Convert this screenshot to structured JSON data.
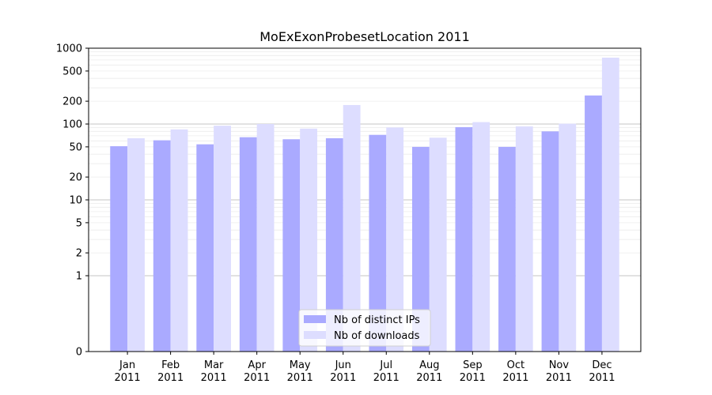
{
  "chart_data": {
    "type": "bar",
    "title": "MoExExonProbesetLocation 2011",
    "xlabel": "",
    "ylabel": "",
    "yscale": "symlog",
    "ylim": [
      0,
      1000
    ],
    "y_ticks": [
      0,
      1,
      2,
      5,
      10,
      20,
      50,
      100,
      200,
      500,
      1000
    ],
    "y_tick_labels": [
      "0",
      "1",
      "2",
      "5",
      "10",
      "20",
      "50",
      "100",
      "200",
      "500",
      "1000"
    ],
    "categories": [
      "Jan\n2011",
      "Feb\n2011",
      "Mar\n2011",
      "Apr\n2011",
      "May\n2011",
      "Jun\n2011",
      "Jul\n2011",
      "Aug\n2011",
      "Sep\n2011",
      "Oct\n2011",
      "Nov\n2011",
      "Dec\n2011"
    ],
    "series": [
      {
        "name": "Nb of distinct IPs",
        "color": "#aaaaff",
        "values": [
          51,
          61,
          54,
          67,
          63,
          65,
          72,
          50,
          91,
          50,
          80,
          238
        ]
      },
      {
        "name": "Nb of downloads",
        "color": "#ddddff",
        "values": [
          65,
          85,
          95,
          100,
          87,
          178,
          90,
          66,
          106,
          93,
          101,
          750
        ]
      }
    ],
    "grid": true,
    "legend_position": "bottom-center"
  }
}
